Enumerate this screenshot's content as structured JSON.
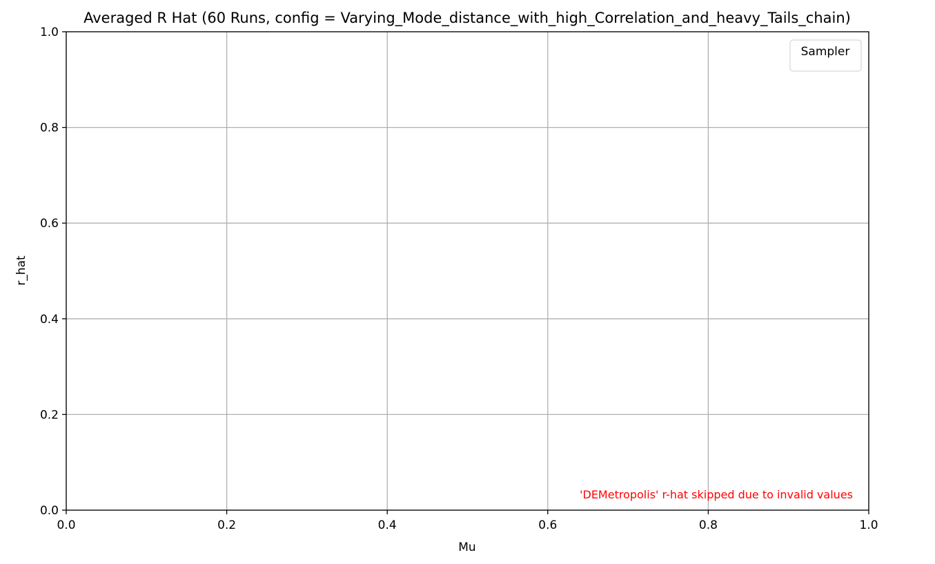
{
  "chart_data": {
    "type": "line",
    "title": "Averaged R Hat (60 Runs, config = Varying_Mode_distance_with_high_Correlation_and_heavy_Tails_chain)",
    "xlabel": "Mu",
    "ylabel": "r_hat",
    "xlim": [
      0.0,
      1.0
    ],
    "ylim": [
      0.0,
      1.0
    ],
    "x_ticks": [
      0.0,
      0.2,
      0.4,
      0.6,
      0.8,
      1.0
    ],
    "y_ticks": [
      0.0,
      0.2,
      0.4,
      0.6,
      0.8,
      1.0
    ],
    "x_tick_labels": [
      "0.0",
      "0.2",
      "0.4",
      "0.6",
      "0.8",
      "1.0"
    ],
    "y_tick_labels": [
      "0.0",
      "0.2",
      "0.4",
      "0.6",
      "0.8",
      "1.0"
    ],
    "grid": true,
    "series": [],
    "legend": {
      "title": "Sampler",
      "placement": "top-right",
      "entries": []
    },
    "annotation": {
      "text": "'DEMetropolis' r-hat skipped due to invalid values",
      "color": "#ff0000",
      "placement": "bottom-right"
    },
    "colors": {
      "grid": "#b0b0b0",
      "axes": "#000000"
    }
  }
}
